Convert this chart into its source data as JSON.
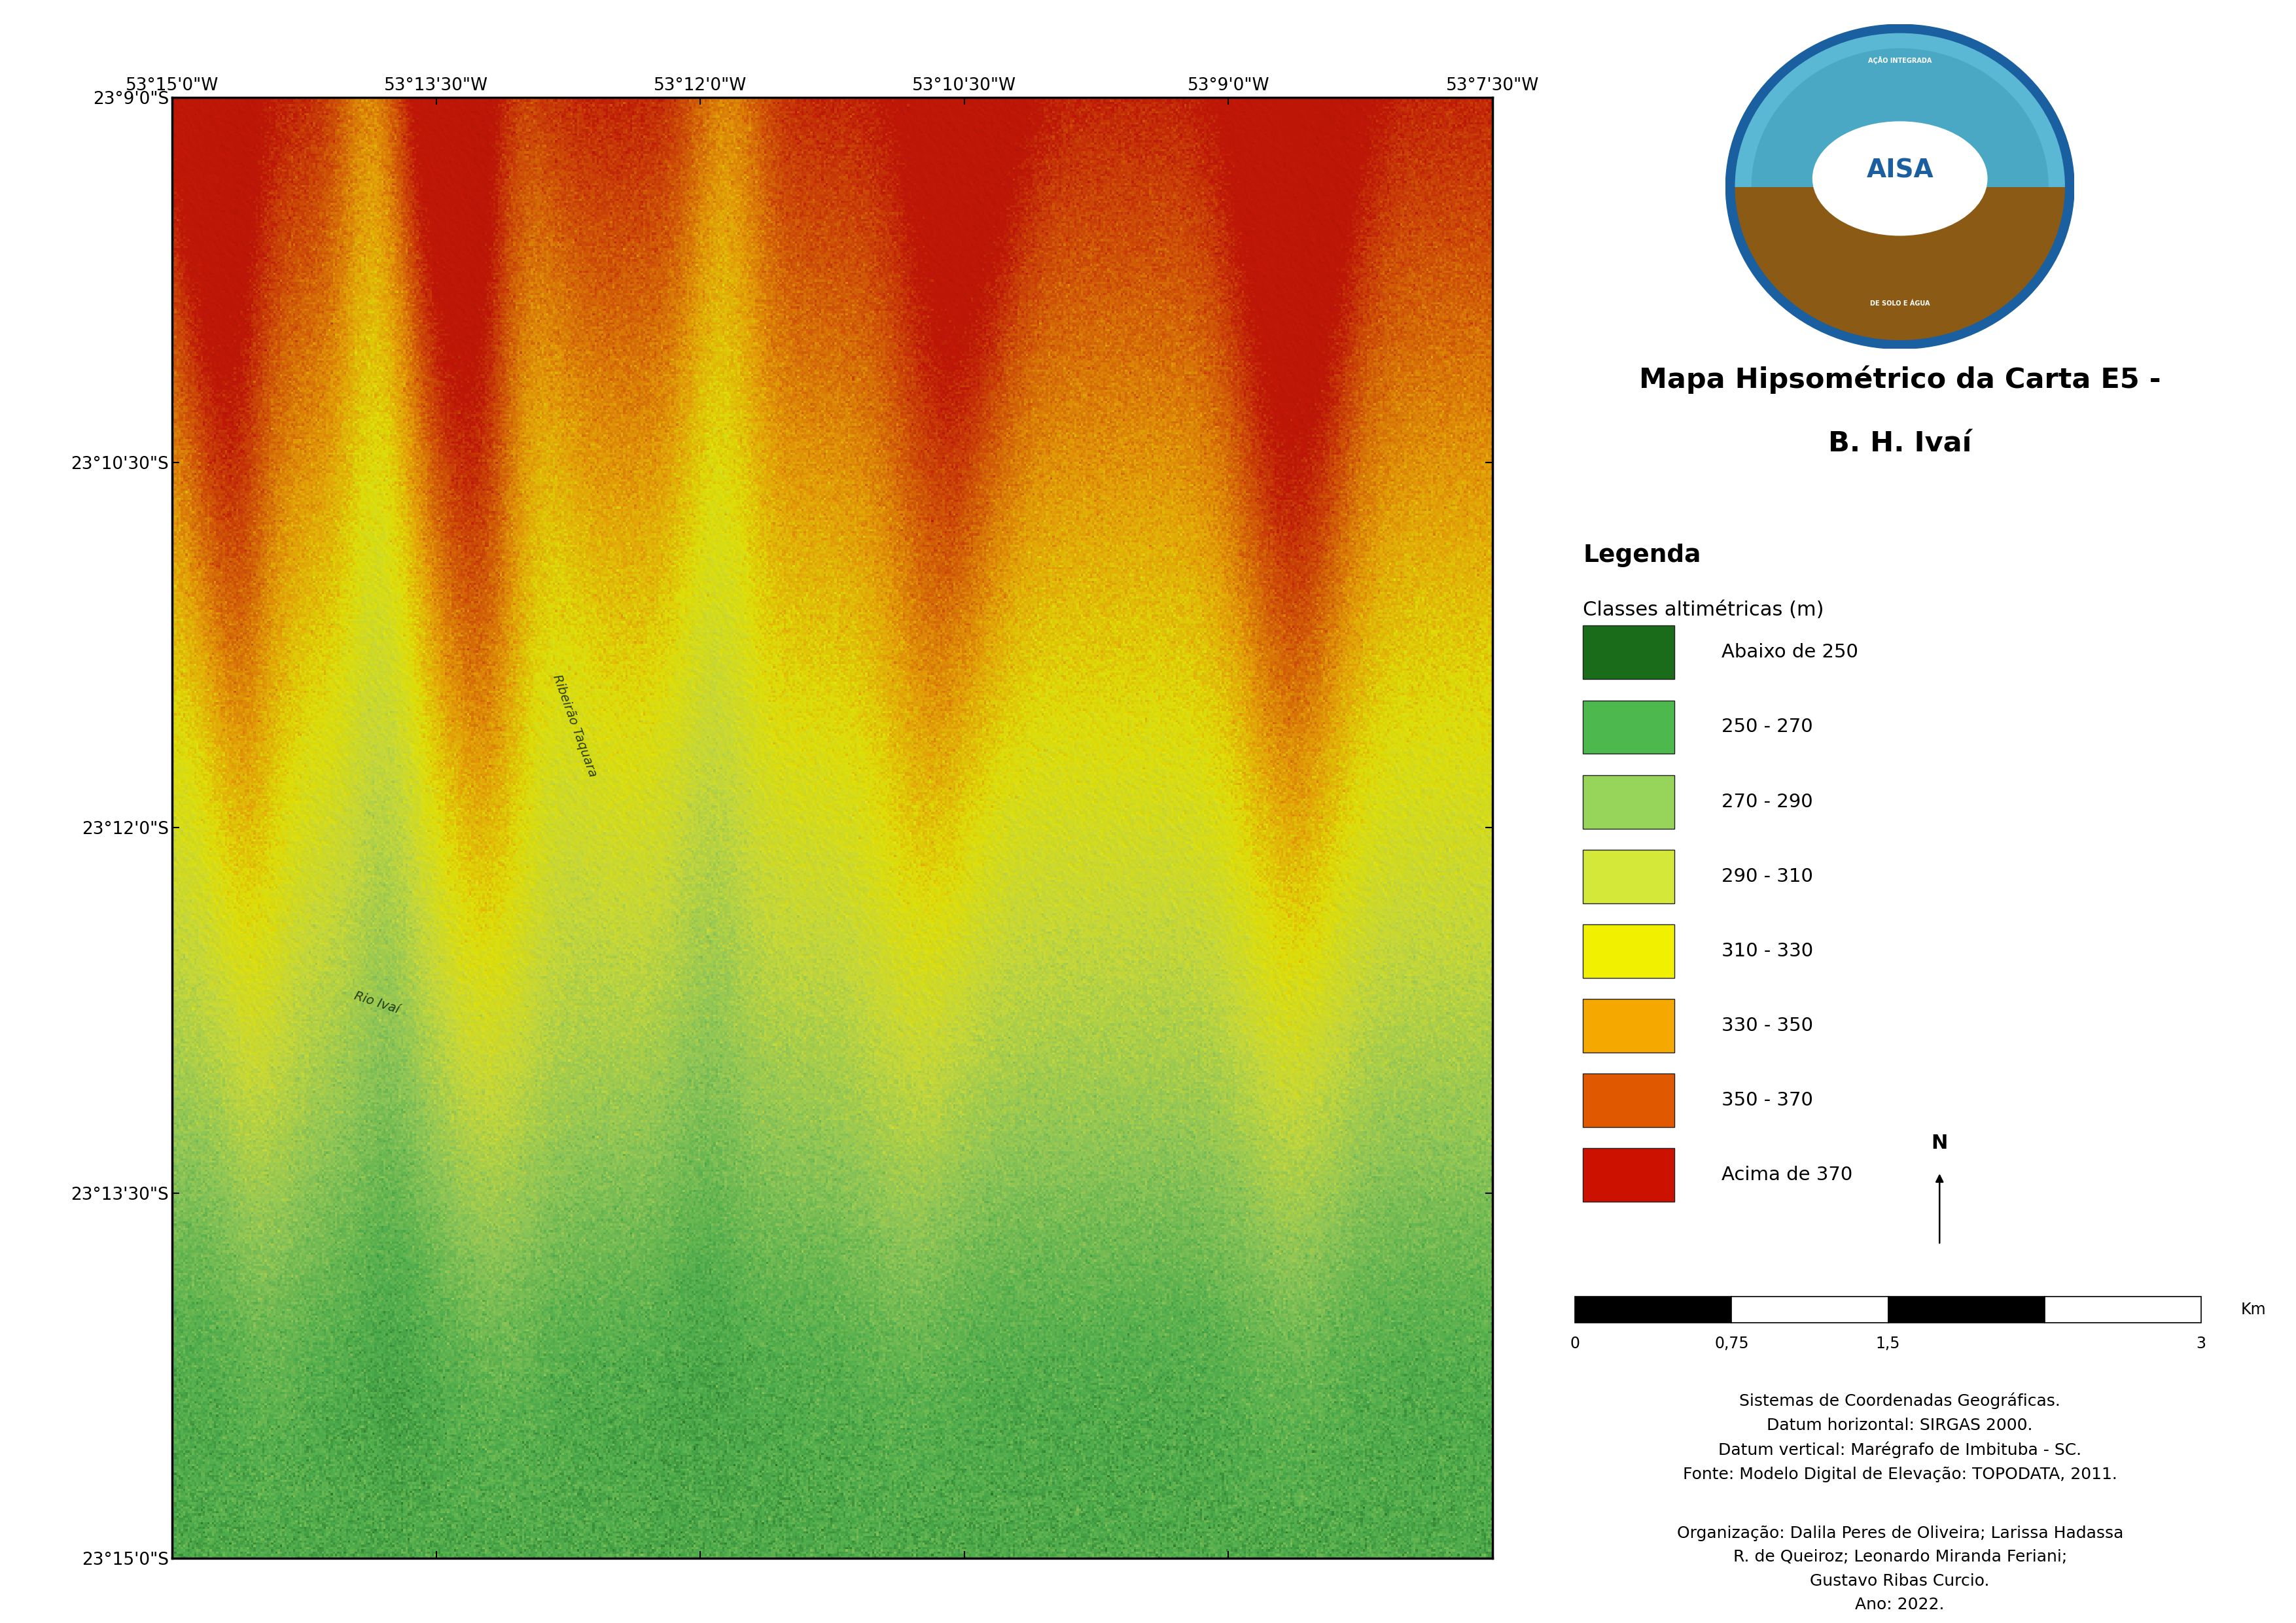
{
  "title_line1": "Mapa Hipsométrico da Carta E5 -",
  "title_line2": "B. H. Ivaí",
  "legend_title": "Legenda",
  "legend_subtitle": "Classes altimétricas (m)",
  "legend_entries": [
    {
      "label": "Abaixo de 250",
      "color": "#1a6b1a"
    },
    {
      "label": "250 - 270",
      "color": "#4db84d"
    },
    {
      "label": "270 - 290",
      "color": "#96d45a"
    },
    {
      "label": "290 - 310",
      "color": "#d4e83a"
    },
    {
      "label": "310 - 330",
      "color": "#f0f000"
    },
    {
      "label": "330 - 350",
      "color": "#f5a800"
    },
    {
      "label": "350 - 370",
      "color": "#e05800"
    },
    {
      "label": "Acima de 370",
      "color": "#cc1100"
    }
  ],
  "scalebar_labels": [
    "0",
    "0,75",
    "1,5",
    "3"
  ],
  "scalebar_unit": "Km",
  "coord_text": "Sistemas de Coordenadas Geográficas.\nDatum horizontal: SIRGAS 2000.\nDatum vertical: Marégrafo de Imbituba - SC.\nFonte: Modelo Digital de Elevação: TOPODATA, 2011.",
  "org_text": "Organização: Dalila Peres de Oliveira; Larissa Hadassa\nR. de Queiroz; Leonardo Miranda Feriani;\nGustavo Ribas Curcio.\nAno: 2022.",
  "xtick_labels": [
    "53°15'0\"W",
    "53°13'30\"W",
    "53°12'0\"W",
    "53°10'30\"W",
    "53°9'0\"W",
    "53°7'30\"W"
  ],
  "ytick_labels": [
    "23°9'0\"S",
    "23°10'30\"S",
    "23°12'0\"S",
    "23°13'30\"S",
    "23°15'0\"S"
  ],
  "page_bg": "#ffffff",
  "border_color": "#000000",
  "font_family": "DejaVu Sans",
  "elev_colors": [
    "#1a6b1a",
    "#4db84d",
    "#96d45a",
    "#d4e83a",
    "#f0f000",
    "#f5a800",
    "#e05800",
    "#cc1100"
  ],
  "elev_bounds": [
    225,
    250,
    270,
    290,
    310,
    330,
    350,
    370,
    410
  ]
}
